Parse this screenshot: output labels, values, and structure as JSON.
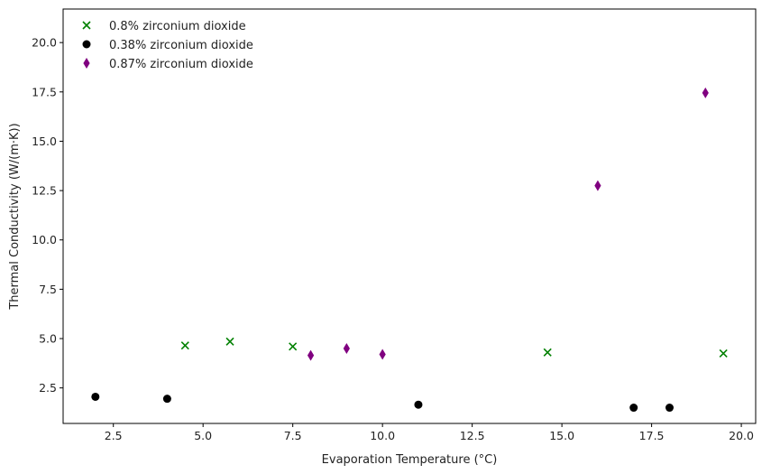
{
  "chart_data": {
    "type": "scatter",
    "title": "",
    "xlabel": "Evaporation Temperature (°C)",
    "ylabel": "Thermal Conductivity (W/(m·K))",
    "xlim": [
      1.1,
      20.4
    ],
    "ylim": [
      0.7,
      21.7
    ],
    "xticks": [
      2.5,
      5.0,
      7.5,
      10.0,
      12.5,
      15.0,
      17.5,
      20.0
    ],
    "xtick_labels": [
      "2.5",
      "5.0",
      "7.5",
      "10.0",
      "12.5",
      "15.0",
      "17.5",
      "20.0"
    ],
    "yticks": [
      2.5,
      5.0,
      7.5,
      10.0,
      12.5,
      15.0,
      17.5,
      20.0
    ],
    "ytick_labels": [
      "2.5",
      "5.0",
      "7.5",
      "10.0",
      "12.5",
      "15.0",
      "17.5",
      "20.0"
    ],
    "grid": false,
    "legend_position": "top-left",
    "series": [
      {
        "name": "0.8% zirconium dioxide",
        "marker": "x",
        "color": "#008000",
        "points": [
          {
            "x": 4.5,
            "y": 4.65
          },
          {
            "x": 5.75,
            "y": 4.85
          },
          {
            "x": 7.5,
            "y": 4.6
          },
          {
            "x": 14.6,
            "y": 4.3
          },
          {
            "x": 19.5,
            "y": 4.25
          }
        ]
      },
      {
        "name": "0.38% zirconium dioxide",
        "marker": "circle",
        "color": "#000000",
        "points": [
          {
            "x": 2.0,
            "y": 2.05
          },
          {
            "x": 4.0,
            "y": 1.95
          },
          {
            "x": 11.0,
            "y": 1.65
          },
          {
            "x": 17.0,
            "y": 1.5
          },
          {
            "x": 18.0,
            "y": 1.5
          }
        ]
      },
      {
        "name": "0.87% zirconium dioxide",
        "marker": "thin-diamond",
        "color": "#800080",
        "points": [
          {
            "x": 8.0,
            "y": 4.15
          },
          {
            "x": 9.0,
            "y": 4.5
          },
          {
            "x": 10.0,
            "y": 4.2
          },
          {
            "x": 16.0,
            "y": 12.75
          },
          {
            "x": 19.0,
            "y": 17.45
          }
        ]
      }
    ]
  }
}
